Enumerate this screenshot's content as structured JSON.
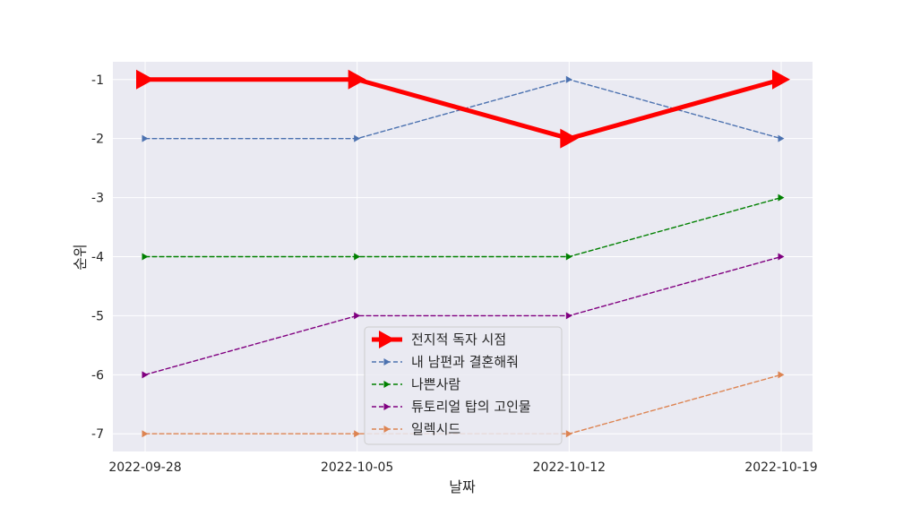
{
  "chart_data": {
    "type": "line",
    "xlabel": "날짜",
    "ylabel": "순위",
    "x": [
      "2022-09-28",
      "2022-10-05",
      "2022-10-12",
      "2022-10-19"
    ],
    "y_ticks": [
      -1,
      -2,
      -3,
      -4,
      -5,
      -6,
      -7
    ],
    "ylim": [
      -7.3,
      -0.7
    ],
    "grid": true,
    "legend_position": "lower center",
    "series": [
      {
        "name": "전지적 독자 시점",
        "values": [
          -1,
          -1,
          -2,
          -1
        ],
        "color": "#ff0000",
        "style": "solid",
        "marker": "triangle-right",
        "emphasis": true
      },
      {
        "name": "내 남편과 결혼해줘",
        "values": [
          -2,
          -2,
          -1,
          -2
        ],
        "color": "#4c72b0",
        "style": "dashed",
        "marker": "triangle-right"
      },
      {
        "name": "나쁜사람",
        "values": [
          -4,
          -4,
          -4,
          -3
        ],
        "color": "#008000",
        "style": "dashed",
        "marker": "triangle-right"
      },
      {
        "name": "튜토리얼 탑의 고인물",
        "values": [
          -6,
          -5,
          -5,
          -4
        ],
        "color": "#800080",
        "style": "dashed",
        "marker": "triangle-right"
      },
      {
        "name": "일렉시드",
        "values": [
          -7,
          -7,
          -7,
          -6
        ],
        "color": "#dd8452",
        "style": "dashed",
        "marker": "triangle-right"
      }
    ]
  }
}
